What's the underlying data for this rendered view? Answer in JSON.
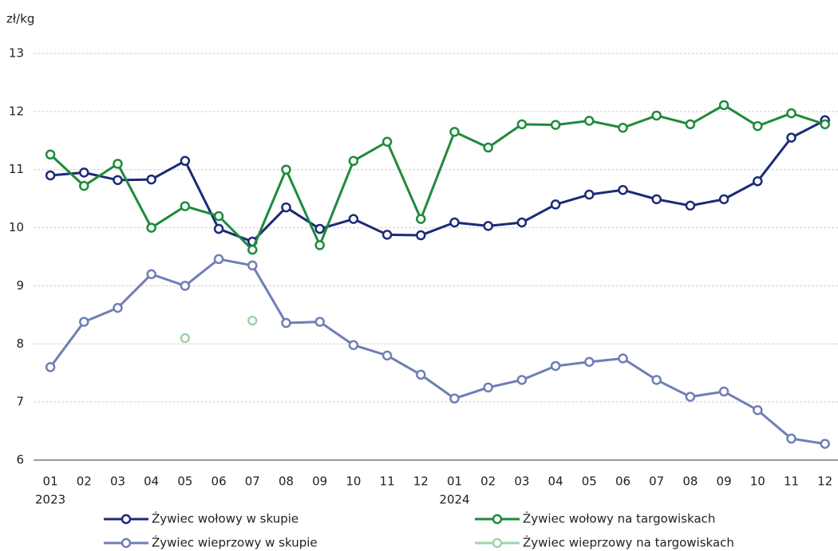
{
  "chart_data": {
    "type": "line",
    "y_label": "zł/kg",
    "categories": [
      "01",
      "02",
      "03",
      "04",
      "05",
      "06",
      "07",
      "08",
      "09",
      "10",
      "11",
      "12",
      "01",
      "02",
      "03",
      "04",
      "05",
      "06",
      "07",
      "08",
      "09",
      "10",
      "11",
      "12"
    ],
    "years": [
      "2023",
      null,
      null,
      null,
      null,
      null,
      null,
      null,
      null,
      null,
      null,
      null,
      "2024",
      null,
      null,
      null,
      null,
      null,
      null,
      null,
      null,
      null,
      null,
      null
    ],
    "ylim": [
      6,
      13
    ],
    "yticks": [
      6,
      7,
      8,
      9,
      10,
      11,
      12,
      13
    ],
    "grid": true,
    "series": [
      {
        "name": "Żywiec wołowy w skupie",
        "color": "#1b2a78",
        "values": [
          10.9,
          10.95,
          10.82,
          10.83,
          11.15,
          9.98,
          9.76,
          10.35,
          9.98,
          10.15,
          9.88,
          9.87,
          10.09,
          10.03,
          10.09,
          10.4,
          10.57,
          10.65,
          10.49,
          10.38,
          10.49,
          10.8,
          11.55,
          11.85
        ]
      },
      {
        "name": "Żywiec wołowy na targowiskach",
        "color": "#1e8a3c",
        "values": [
          11.26,
          10.72,
          11.1,
          10.0,
          10.37,
          10.2,
          9.62,
          11.0,
          9.7,
          11.15,
          11.48,
          10.15,
          11.65,
          11.38,
          11.78,
          11.77,
          11.84,
          11.72,
          11.93,
          11.78,
          12.11,
          11.75,
          11.97,
          11.78
        ]
      },
      {
        "name": "Żywiec wieprzowy w skupie",
        "color": "#6f7eb7",
        "values": [
          7.6,
          8.38,
          8.62,
          9.2,
          9.0,
          9.46,
          9.35,
          8.36,
          8.38,
          7.98,
          7.8,
          7.47,
          7.06,
          7.25,
          7.38,
          7.62,
          7.69,
          7.75,
          7.38,
          7.09,
          7.18,
          6.86,
          6.37,
          6.28
        ]
      },
      {
        "name": "Żywiec wieprzowy na targowiskach",
        "color": "#9fd4a8",
        "values": [
          null,
          null,
          null,
          null,
          8.1,
          null,
          8.4,
          null,
          null,
          null,
          null,
          null,
          null,
          null,
          null,
          null,
          null,
          null,
          null,
          null,
          null,
          null,
          null,
          null
        ]
      }
    ]
  }
}
